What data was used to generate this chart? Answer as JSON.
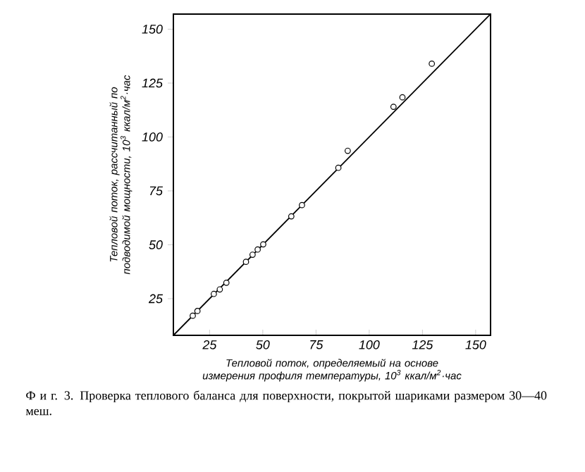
{
  "chart_data": {
    "type": "scatter",
    "xlabel": "Тепловой поток, определяемый на основе измерения профиля температуры, 10$^{3}$ ккал/м$^{2}$·час",
    "ylabel": "Тепловой поток, рассчитанный по подводимой мощности, 10$^{3}$ ккал/м$^{2}$·час",
    "annotations": [
      "Ф и г. 3. Проверка теплового баланса для поверхности, покрытой шариками размером 30—40 меш."
    ],
    "xlim": [
      8,
      157
    ],
    "ylim": [
      8,
      157
    ],
    "xticks": [
      25,
      50,
      75,
      100,
      125,
      150
    ],
    "yticks": [
      25,
      50,
      75,
      100,
      125,
      150
    ],
    "series": [
      {
        "marker": "circle",
        "color": "#000000",
        "x": [
          17.1,
          19.3,
          27.0,
          29.8,
          32.9,
          42.1,
          45.2,
          47.6,
          50.2,
          63.4,
          68.4,
          85.5,
          89.9,
          111.4,
          115.6,
          129.4
        ],
        "values": [
          17.1,
          19.3,
          27.2,
          29.3,
          32.4,
          42.1,
          45.4,
          47.8,
          50.2,
          63.2,
          68.4,
          85.7,
          93.6,
          114.0,
          118.4,
          134.0
        ]
      },
      {
        "type": "line",
        "marker": "none",
        "color": "#000000",
        "x": [
          8,
          157
        ],
        "values": [
          8,
          157
        ]
      }
    ]
  }
}
